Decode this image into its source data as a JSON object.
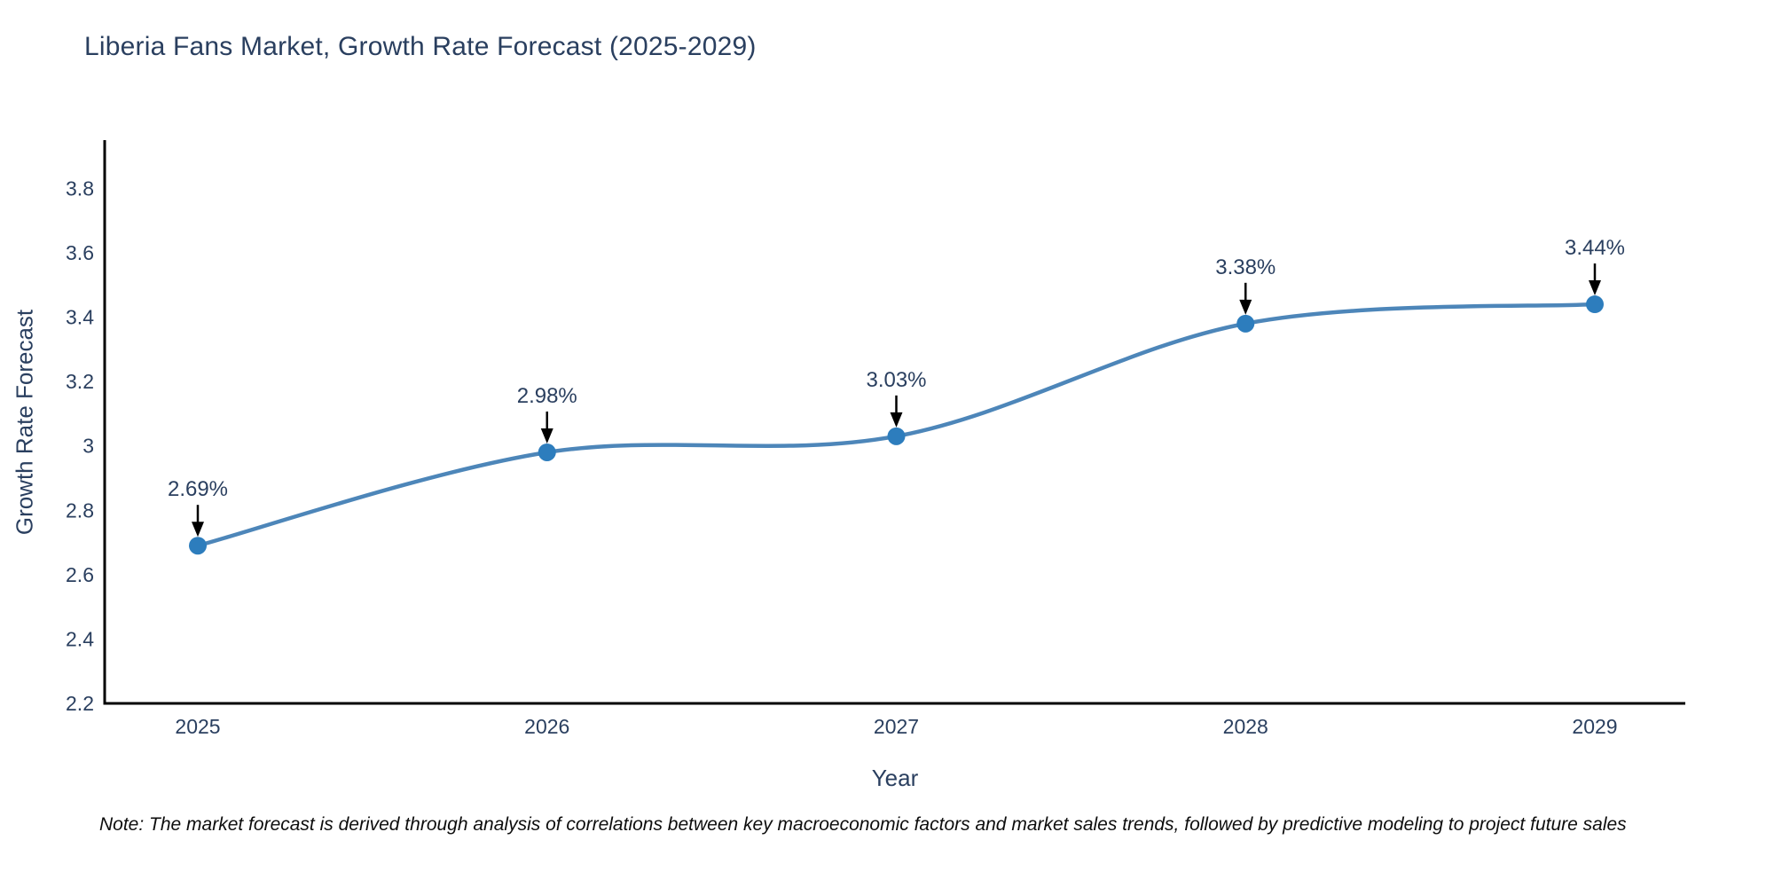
{
  "title": "Liberia Fans Market, Growth Rate Forecast (2025-2029)",
  "note": "Note: The market forecast is derived through analysis of correlations between key macroeconomic factors and market sales trends, followed by predictive modeling to project future sales",
  "chart_data": {
    "type": "line",
    "title": "Liberia Fans Market, Growth Rate Forecast (2025-2029)",
    "x": [
      "2025",
      "2026",
      "2027",
      "2028",
      "2029"
    ],
    "series": [
      {
        "name": "Growth Rate Forecast",
        "values": [
          2.69,
          2.98,
          3.03,
          3.38,
          3.44
        ]
      }
    ],
    "labels": [
      "2.69%",
      "2.98%",
      "3.03%",
      "3.38%",
      "3.44%"
    ],
    "xlabel": "Year",
    "ylabel": "Growth Rate Forecast",
    "ylim": [
      2.2,
      3.95
    ],
    "yticks": [
      "2.2",
      "2.4",
      "2.6",
      "2.8",
      "3",
      "3.2",
      "3.4",
      "3.6",
      "3.8"
    ],
    "line_shape": "spline",
    "grid": false,
    "legend": "none",
    "colors": {
      "line": "#4d86b9",
      "marker": "#2d7dbd",
      "arrow": "#000000",
      "axis": "#000000",
      "text": "#2a3f5f"
    }
  }
}
